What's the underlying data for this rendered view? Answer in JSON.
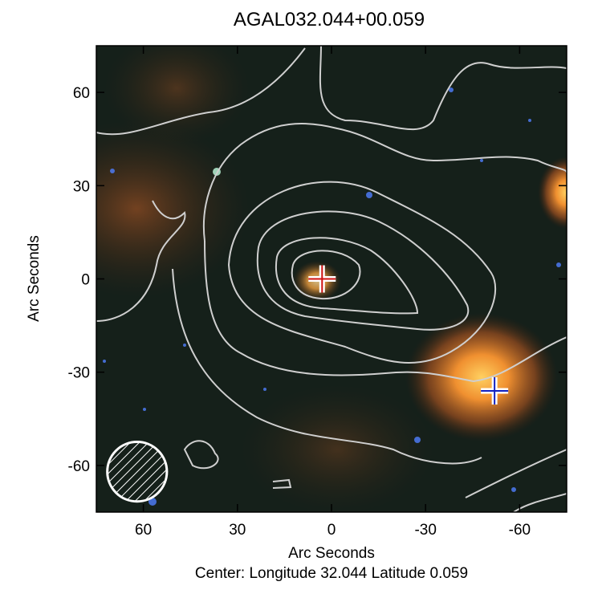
{
  "chart_data": {
    "type": "image",
    "title": "AGAL032.044+00.059",
    "xlabel": "Arc Seconds",
    "ylabel": "Arc Seconds",
    "footer": "Center:  Longitude 32.044 Latitude 0.059",
    "xlim": [
      75,
      -75
    ],
    "ylim": [
      -75,
      75
    ],
    "xticks": [
      60,
      30,
      0,
      -30,
      -60
    ],
    "yticks": [
      -60,
      -30,
      0,
      30,
      60
    ],
    "markers": [
      {
        "x": 3,
        "y": 0,
        "color": "#d01010"
      },
      {
        "x": -52,
        "y": -36,
        "color": "#1020c0"
      }
    ],
    "beam": {
      "x": 62,
      "y": -62,
      "diameter": 19
    }
  }
}
